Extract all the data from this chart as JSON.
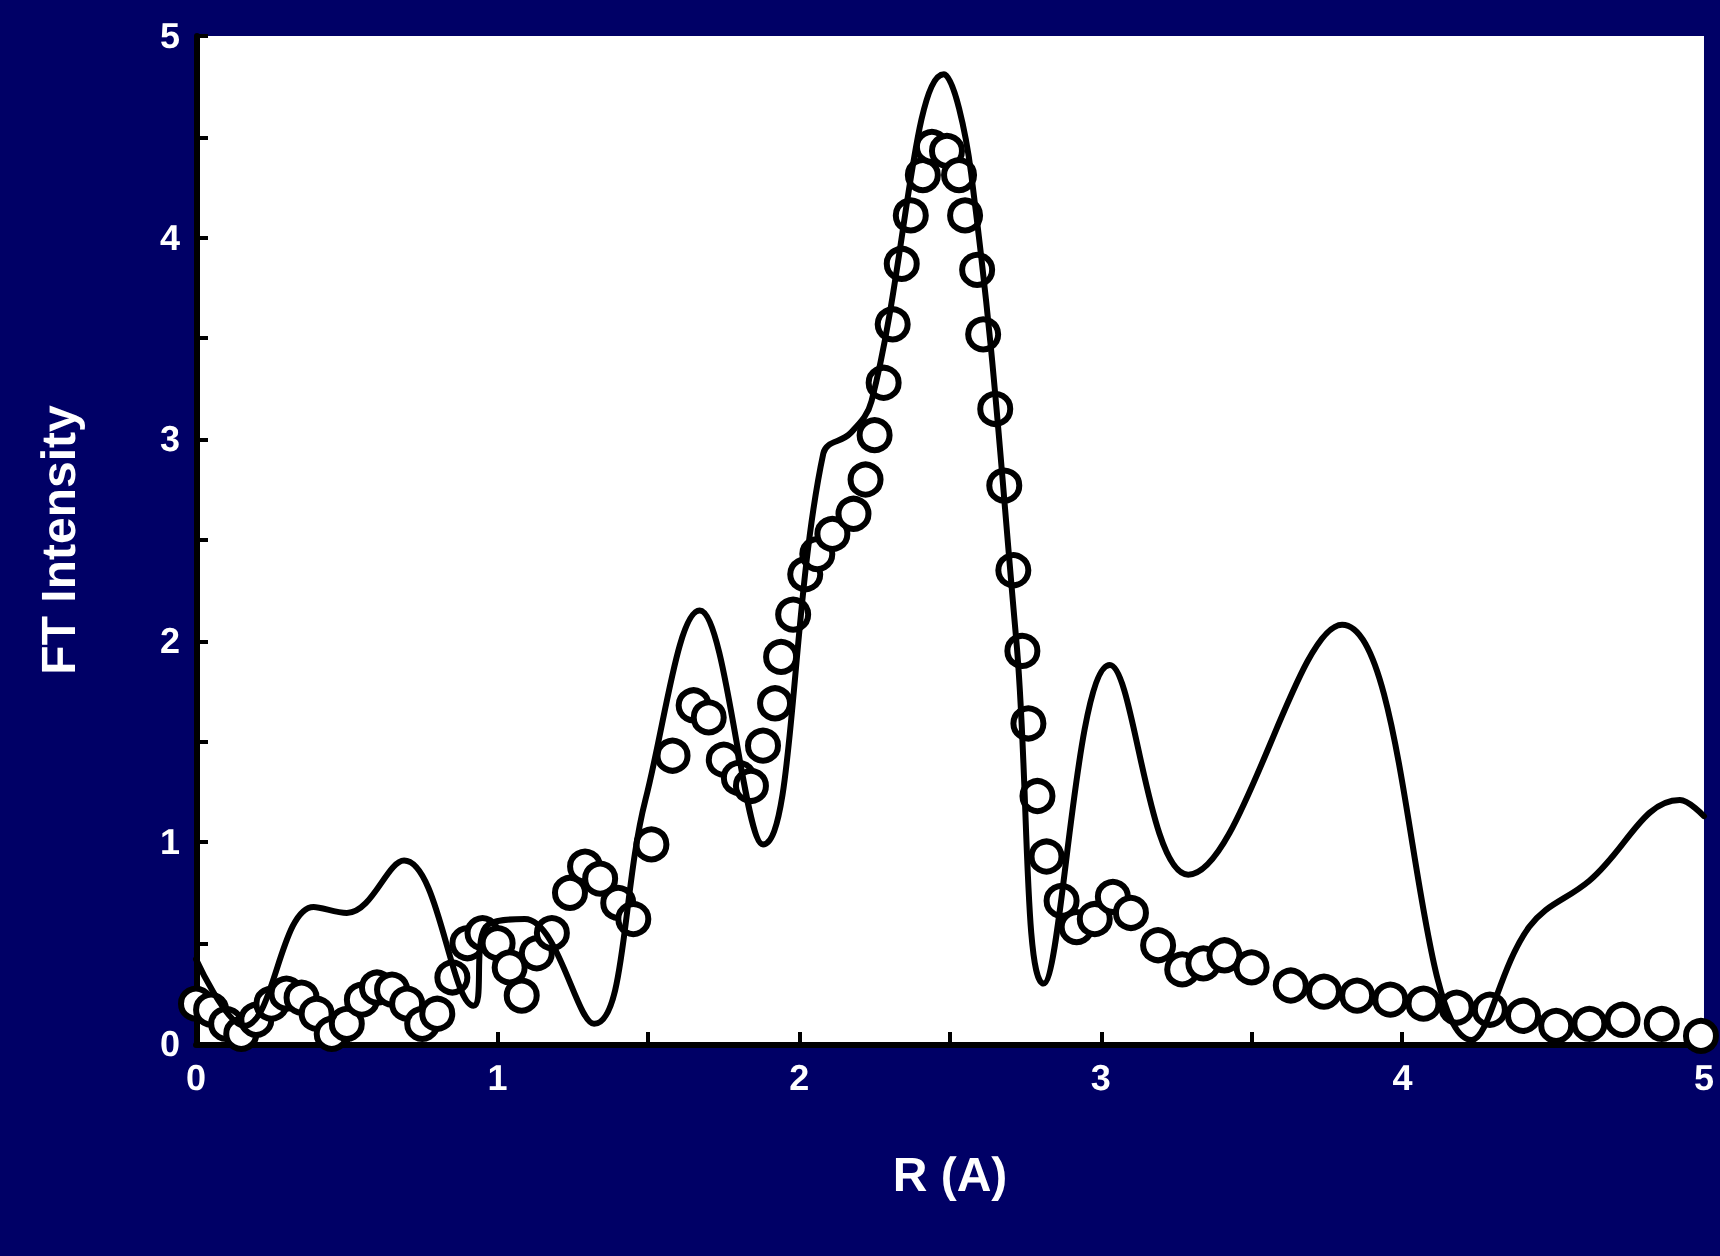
{
  "chart_data": {
    "type": "line",
    "xlabel": "R (A)",
    "ylabel": "FT Intensity",
    "xlim": [
      0,
      5
    ],
    "ylim": [
      0,
      5
    ],
    "xticks": [
      0,
      {
        "value": 0.5,
        "label": null
      },
      1,
      {
        "value": 1.5,
        "label": null
      },
      2,
      {
        "value": 2.5,
        "label": null
      },
      3,
      {
        "value": 3.5,
        "label": null
      },
      4,
      {
        "value": 4.5,
        "label": null
      },
      5
    ],
    "yticks": [
      0,
      {
        "value": 0.5,
        "label": null
      },
      1,
      {
        "value": 1.5,
        "label": null
      },
      2,
      {
        "value": 2.5,
        "label": null
      },
      3,
      {
        "value": 3.5,
        "label": null
      },
      4,
      {
        "value": 4.5,
        "label": null
      },
      5
    ],
    "grid": false,
    "marker": "circle",
    "line_style": "solid",
    "series": [
      {
        "color": "#000000",
        "marker": "none",
        "x": [
          0,
          0.16,
          0.39,
          0.5,
          0.69,
          0.92,
          0.96,
          1.09,
          1.32,
          1.49,
          1.67,
          1.88,
          2.08,
          2.17,
          2.24,
          2.48,
          2.57,
          2.72,
          2.81,
          3.03,
          3.29,
          3.8,
          4.23,
          4.42,
          4.62,
          4.92,
          5.0
        ],
        "values": [
          0.42,
          0.09,
          0.68,
          0.65,
          0.91,
          0.19,
          0.58,
          0.62,
          0.1,
          1.21,
          2.15,
          0.99,
          2.93,
          3.03,
          3.19,
          4.81,
          4.32,
          2.0,
          0.3,
          1.88,
          0.84,
          2.08,
          0.02,
          0.58,
          0.81,
          1.21,
          1.13
        ]
      },
      {
        "type": "scatter",
        "color": "#000000",
        "x": [
          0,
          0.05,
          0.1,
          0.15,
          0.2,
          0.25,
          0.3,
          0.35,
          0.4,
          0.45,
          0.5,
          0.55,
          0.6,
          0.65,
          0.7,
          0.75,
          0.8,
          0.85,
          0.9,
          0.95,
          1.0,
          1.04,
          1.08,
          1.13,
          1.18,
          1.24,
          1.29,
          1.34,
          1.4,
          1.45,
          1.51,
          1.58,
          1.65,
          1.7,
          1.75,
          1.8,
          1.84,
          1.88,
          1.92,
          1.94,
          1.98,
          2.02,
          2.06,
          2.11,
          2.18,
          2.22,
          2.25,
          2.28,
          2.31,
          2.34,
          2.37,
          2.41,
          2.44,
          2.49,
          2.53,
          2.55,
          2.59,
          2.61,
          2.65,
          2.68,
          2.71,
          2.74,
          2.76,
          2.79,
          2.82,
          2.87,
          2.92,
          2.98,
          3.04,
          3.1,
          3.19,
          3.27,
          3.34,
          3.41,
          3.5,
          3.63,
          3.74,
          3.85,
          3.96,
          4.07,
          4.18,
          4.29,
          4.4,
          4.51,
          4.62,
          4.73,
          4.86,
          4.99
        ],
        "values": [
          0.2,
          0.17,
          0.1,
          0.05,
          0.12,
          0.2,
          0.25,
          0.23,
          0.15,
          0.05,
          0.1,
          0.22,
          0.28,
          0.27,
          0.2,
          0.1,
          0.15,
          0.33,
          0.5,
          0.55,
          0.5,
          0.38,
          0.24,
          0.45,
          0.55,
          0.75,
          0.88,
          0.82,
          0.7,
          0.62,
          0.99,
          1.43,
          1.68,
          1.62,
          1.41,
          1.32,
          1.28,
          1.48,
          1.69,
          1.92,
          2.13,
          2.33,
          2.43,
          2.53,
          2.63,
          2.8,
          3.02,
          3.28,
          3.57,
          3.87,
          4.11,
          4.31,
          4.45,
          4.43,
          4.31,
          4.11,
          3.84,
          3.52,
          3.15,
          2.77,
          2.35,
          1.95,
          1.59,
          1.23,
          0.93,
          0.71,
          0.58,
          0.62,
          0.73,
          0.65,
          0.49,
          0.37,
          0.4,
          0.44,
          0.38,
          0.29,
          0.26,
          0.24,
          0.22,
          0.2,
          0.18,
          0.17,
          0.14,
          0.09,
          0.1,
          0.12,
          0.1,
          0.04
        ]
      }
    ]
  }
}
